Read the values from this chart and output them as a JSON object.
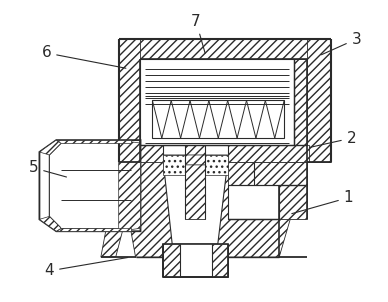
{
  "bg_color": "#ffffff",
  "line_color": "#2a2a2a",
  "figsize": [
    3.88,
    3.02
  ],
  "dpi": 100,
  "labels": {
    "1": {
      "arrow": [
        290,
        215
      ],
      "text": [
        350,
        198
      ]
    },
    "2": {
      "arrow": [
        308,
        148
      ],
      "text": [
        353,
        138
      ]
    },
    "3": {
      "arrow": [
        320,
        55
      ],
      "text": [
        358,
        38
      ]
    },
    "4": {
      "arrow": [
        130,
        258
      ],
      "text": [
        48,
        272
      ]
    },
    "5": {
      "arrow": [
        68,
        178
      ],
      "text": [
        32,
        168
      ]
    },
    "6": {
      "arrow": [
        128,
        68
      ],
      "text": [
        45,
        52
      ]
    },
    "7": {
      "arrow": [
        206,
        55
      ],
      "text": [
        196,
        20
      ]
    }
  }
}
